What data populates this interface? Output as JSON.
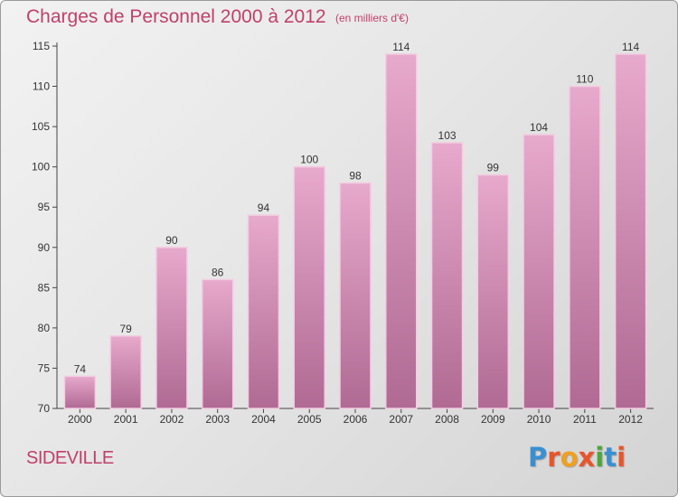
{
  "header": {
    "title": "Charges de Personnel 2000 à 2012",
    "subtitle": "(en milliers d'€)"
  },
  "footer": {
    "commune": "SIDEVILLE",
    "brand_letters": [
      "P",
      "r",
      "o",
      "x",
      "i",
      "t",
      "i"
    ],
    "brand_colors": [
      "#3a8fd0",
      "#e8552a",
      "#f0a020",
      "#e8552a",
      "#4aa83a",
      "#3a8fd0",
      "#e8552a"
    ]
  },
  "colors": {
    "bar_top": "#e7a9cc",
    "bar_bottom": "#b06a93",
    "bar_edge": "#f3cde2",
    "text": "#333333",
    "accent": "#c0406a"
  },
  "chart_data": {
    "type": "bar",
    "title": "Charges de Personnel 2000 à 2012",
    "subtitle": "(en milliers d'€)",
    "xlabel": "",
    "ylabel": "",
    "categories": [
      "2000",
      "2001",
      "2002",
      "2003",
      "2004",
      "2005",
      "2006",
      "2007",
      "2008",
      "2009",
      "2010",
      "2011",
      "2012"
    ],
    "values": [
      74,
      79,
      90,
      86,
      94,
      100,
      98,
      114,
      103,
      99,
      104,
      110,
      114
    ],
    "ylim": [
      70,
      115
    ],
    "yticks": [
      70,
      75,
      80,
      85,
      90,
      95,
      100,
      105,
      110,
      115
    ],
    "grid": false,
    "data_labels": true
  }
}
